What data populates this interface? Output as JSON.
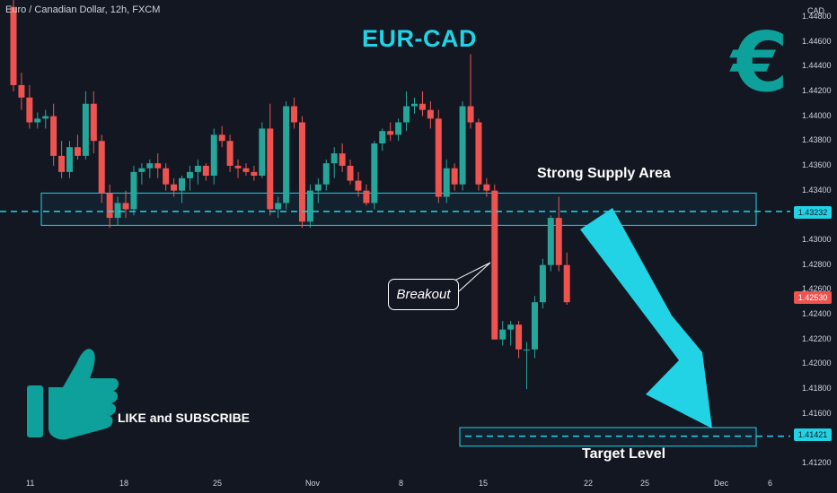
{
  "header": {
    "symbol_info": "Euro / Canadian Dollar, 12h, FXCM",
    "currency": "CAD"
  },
  "title": "EUR-CAD",
  "annotations": {
    "supply_label": "Strong Supply Area",
    "breakout_label": "Breakout",
    "target_label": "Target Level",
    "cta": "LIKE and SUBSCRIBE"
  },
  "price_tags": {
    "supply_level": "1.43232",
    "current_price": "1.42530",
    "target_level": "1.41421"
  },
  "colors": {
    "background": "#131722",
    "bullish": "#26a69a",
    "bearish": "#ef5350",
    "accent": "#22d3e6",
    "euro_icon": "#0ea09a"
  },
  "icons": [
    "euro-icon",
    "thumbs-up-icon",
    "arrow-down-right-icon"
  ],
  "chart_data": {
    "type": "candlestick",
    "title": "EUR-CAD",
    "x_tick_labels": [
      "11",
      "18",
      "25",
      "Nov",
      "8",
      "15",
      "22",
      "25",
      "Dec",
      "6"
    ],
    "y_tick_labels": [
      "1.44800",
      "1.44600",
      "1.44400",
      "1.44200",
      "1.44000",
      "1.43800",
      "1.43600",
      "1.43400",
      "1.43000",
      "1.42800",
      "1.42600",
      "1.42400",
      "1.42200",
      "1.42000",
      "1.41800",
      "1.41600",
      "1.41200"
    ],
    "ylim": [
      1.411,
      1.449
    ],
    "grid": false,
    "zones": {
      "supply": [
        1.4312,
        1.4338
      ],
      "target": [
        1.4134,
        1.4149
      ]
    },
    "levels": {
      "supply_line": 1.43232,
      "target_line": 1.41421,
      "last_price": 1.4253
    },
    "candles": [
      [
        1.4488,
        1.4495,
        1.442,
        1.4425
      ],
      [
        1.4425,
        1.4435,
        1.4405,
        1.4415
      ],
      [
        1.4415,
        1.4425,
        1.439,
        1.4395
      ],
      [
        1.4395,
        1.4403,
        1.439,
        1.4398
      ],
      [
        1.4398,
        1.4405,
        1.439,
        1.44
      ],
      [
        1.44,
        1.441,
        1.436,
        1.4368
      ],
      [
        1.4368,
        1.438,
        1.435,
        1.4355
      ],
      [
        1.4355,
        1.438,
        1.435,
        1.4375
      ],
      [
        1.4375,
        1.4385,
        1.4365,
        1.4368
      ],
      [
        1.4368,
        1.442,
        1.4365,
        1.441
      ],
      [
        1.441,
        1.442,
        1.437,
        1.438
      ],
      [
        1.438,
        1.4385,
        1.433,
        1.4338
      ],
      [
        1.4338,
        1.4345,
        1.431,
        1.4318
      ],
      [
        1.4318,
        1.4335,
        1.4312,
        1.433
      ],
      [
        1.433,
        1.434,
        1.4318,
        1.4325
      ],
      [
        1.4325,
        1.436,
        1.432,
        1.4355
      ],
      [
        1.4355,
        1.4362,
        1.4345,
        1.4358
      ],
      [
        1.4358,
        1.4365,
        1.435,
        1.4362
      ],
      [
        1.4362,
        1.437,
        1.435,
        1.4358
      ],
      [
        1.4358,
        1.4362,
        1.434,
        1.4345
      ],
      [
        1.4345,
        1.435,
        1.4335,
        1.434
      ],
      [
        1.434,
        1.4352,
        1.433,
        1.435
      ],
      [
        1.435,
        1.436,
        1.434,
        1.4355
      ],
      [
        1.4355,
        1.4365,
        1.4345,
        1.436
      ],
      [
        1.436,
        1.4362,
        1.4348,
        1.4352
      ],
      [
        1.4352,
        1.439,
        1.4345,
        1.4385
      ],
      [
        1.4385,
        1.4392,
        1.4375,
        1.438
      ],
      [
        1.438,
        1.4385,
        1.4355,
        1.436
      ],
      [
        1.436,
        1.4365,
        1.435,
        1.4358
      ],
      [
        1.4358,
        1.4362,
        1.4352,
        1.4355
      ],
      [
        1.4355,
        1.436,
        1.4348,
        1.4352
      ],
      [
        1.4352,
        1.4395,
        1.435,
        1.439
      ],
      [
        1.439,
        1.441,
        1.432,
        1.4325
      ],
      [
        1.4325,
        1.4335,
        1.4318,
        1.433
      ],
      [
        1.433,
        1.4412,
        1.4325,
        1.4408
      ],
      [
        1.4408,
        1.4415,
        1.439,
        1.4395
      ],
      [
        1.4395,
        1.44,
        1.431,
        1.4315
      ],
      [
        1.4315,
        1.4345,
        1.431,
        1.434
      ],
      [
        1.434,
        1.435,
        1.433,
        1.4345
      ],
      [
        1.4345,
        1.4365,
        1.434,
        1.4362
      ],
      [
        1.4362,
        1.4375,
        1.435,
        1.437
      ],
      [
        1.437,
        1.4378,
        1.4355,
        1.436
      ],
      [
        1.436,
        1.4365,
        1.4345,
        1.4348
      ],
      [
        1.4348,
        1.4355,
        1.4335,
        1.434
      ],
      [
        1.434,
        1.4345,
        1.4328,
        1.433
      ],
      [
        1.433,
        1.438,
        1.4325,
        1.4378
      ],
      [
        1.4378,
        1.439,
        1.4372,
        1.4388
      ],
      [
        1.4388,
        1.4395,
        1.438,
        1.4385
      ],
      [
        1.4385,
        1.4398,
        1.438,
        1.4395
      ],
      [
        1.4395,
        1.442,
        1.4388,
        1.4408
      ],
      [
        1.4408,
        1.4415,
        1.4402,
        1.441
      ],
      [
        1.441,
        1.442,
        1.44,
        1.4405
      ],
      [
        1.4405,
        1.4412,
        1.439,
        1.4398
      ],
      [
        1.4398,
        1.4405,
        1.433,
        1.4335
      ],
      [
        1.4335,
        1.4365,
        1.433,
        1.4358
      ],
      [
        1.4358,
        1.4362,
        1.434,
        1.4345
      ],
      [
        1.4345,
        1.4412,
        1.434,
        1.4408
      ],
      [
        1.4408,
        1.445,
        1.439,
        1.4395
      ],
      [
        1.4395,
        1.4398,
        1.434,
        1.4345
      ],
      [
        1.4345,
        1.435,
        1.4335,
        1.434
      ],
      [
        1.434,
        1.4345,
        1.422,
        1.422
      ],
      [
        1.422,
        1.4235,
        1.4215,
        1.4228
      ],
      [
        1.4228,
        1.4235,
        1.4215,
        1.4232
      ],
      [
        1.4232,
        1.4235,
        1.4205,
        1.4212
      ],
      [
        1.4212,
        1.4218,
        1.418,
        1.4212
      ],
      [
        1.4212,
        1.4255,
        1.4205,
        1.425
      ],
      [
        1.425,
        1.4285,
        1.4245,
        1.428
      ],
      [
        1.428,
        1.432,
        1.4275,
        1.4318
      ],
      [
        1.4318,
        1.4335,
        1.4275,
        1.428
      ],
      [
        1.428,
        1.429,
        1.4248,
        1.425
      ]
    ]
  }
}
